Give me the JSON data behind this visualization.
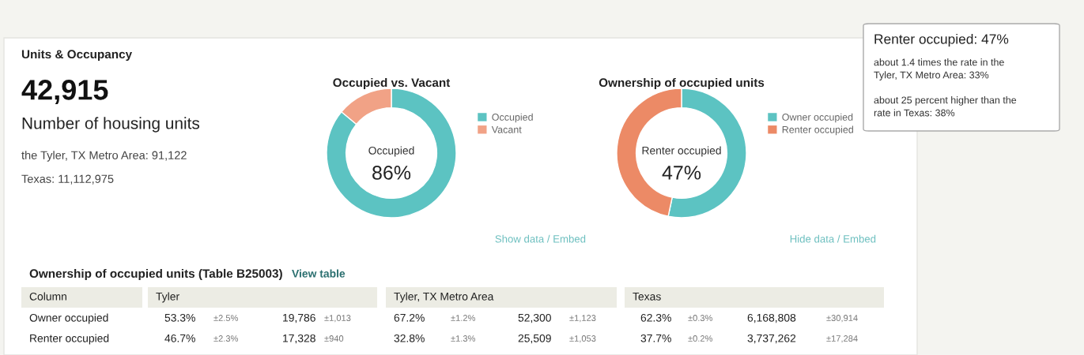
{
  "chart_data": [
    {
      "type": "other",
      "title": "Units & Occupancy",
      "annotations": [
        "42,915",
        "Number of housing units",
        "the Tyler, TX Metro Area: 91,122",
        "Texas: 11,112,975"
      ]
    },
    {
      "type": "donut",
      "title": "Occupied vs. Vacant",
      "categories": [
        "Occupied",
        "Vacant"
      ],
      "values": [
        86,
        14
      ],
      "colors": [
        "#5cc3c2",
        "#f1a286"
      ],
      "legend": "right",
      "annotations": [
        "Occupied",
        "86%",
        "Show data / Embed"
      ]
    },
    {
      "type": "donut",
      "title": "Ownership of occupied units",
      "categories": [
        "Owner occupied",
        "Renter occupied"
      ],
      "values": [
        53.3,
        46.7
      ],
      "colors": [
        "#5cc3c2",
        "#ec8a66"
      ],
      "legend": "right",
      "annotations": [
        "Renter occupied",
        "47%",
        "Hide data / Embed",
        "Renter occupied: 47%",
        "about 1.4 times the rate in the\nTyler, TX Metro Area: 33%",
        "about 25 percent higher than the\nrate in Texas: 38%"
      ]
    },
    {
      "type": "other",
      "title": "Ownership of occupied units (Table B25003)",
      "annotations": [
        "View table"
      ],
      "categories": [
        "Column",
        "Tyler",
        "Tyler, TX Metro Area",
        "Texas"
      ],
      "y_categories": [
        "Owner occupied",
        "Renter occupied"
      ],
      "cell_labels": [
        [
          "53.3%",
          "±2.5%",
          "19,786",
          "±1,013",
          "67.2%",
          "±1.2%",
          "52,300",
          "±1,123",
          "62.3%",
          "±0.3%",
          "6,168,808",
          "±30,914"
        ],
        [
          "46.7%",
          "±2.3%",
          "17,328",
          "±940",
          "32.8%",
          "±1.3%",
          "25,509",
          "±1,053",
          "37.7%",
          "±0.2%",
          "3,737,262",
          "±17,284"
        ]
      ]
    }
  ]
}
